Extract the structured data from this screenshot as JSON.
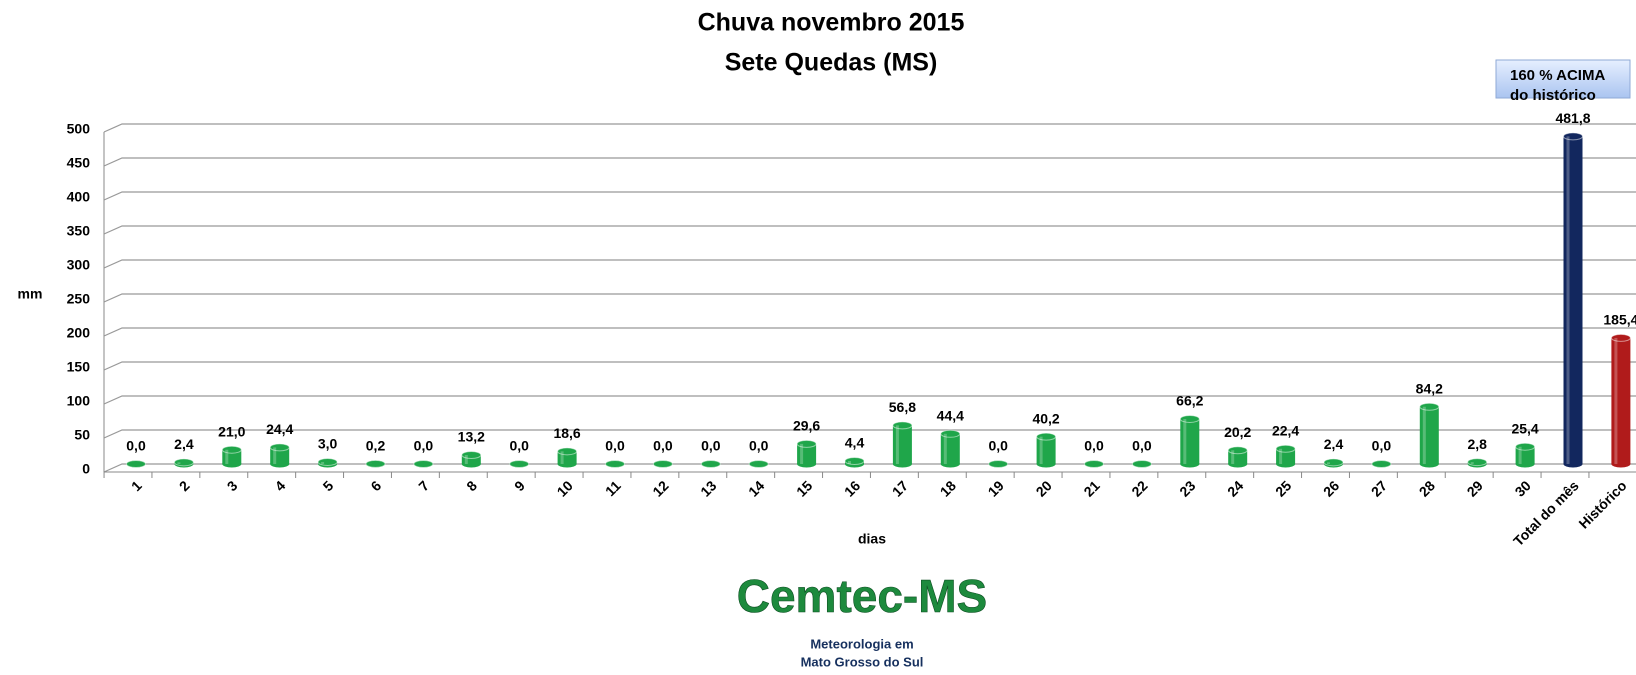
{
  "chart_data": {
    "type": "bar",
    "title": [
      "Chuva novembro 2015",
      "Sete Quedas (MS)"
    ],
    "y_label": "mm",
    "x_label": "dias",
    "annotation": [
      "160 % ACIMA",
      "do histórico"
    ],
    "categories": [
      "1",
      "2",
      "3",
      "4",
      "5",
      "6",
      "7",
      "8",
      "9",
      "10",
      "11",
      "12",
      "13",
      "14",
      "15",
      "16",
      "17",
      "18",
      "19",
      "20",
      "21",
      "22",
      "23",
      "24",
      "25",
      "26",
      "27",
      "28",
      "29",
      "30",
      "Total do mês",
      "Histórico"
    ],
    "values": [
      0,
      2.4,
      21,
      24.4,
      3,
      0.2,
      0,
      13.2,
      0,
      18.6,
      0,
      0,
      0,
      0,
      29.6,
      4.4,
      56.8,
      44.4,
      0,
      40.2,
      0,
      0,
      66.2,
      20.2,
      22.4,
      2.4,
      0,
      84.2,
      2.8,
      25.4,
      481.8,
      185.4
    ],
    "value_labels": [
      "0,0",
      "2,4",
      "21,0",
      "24,4",
      "3,0",
      "0,2",
      "0,0",
      "13,2",
      "0,0",
      "18,6",
      "0,0",
      "0,0",
      "0,0",
      "0,0",
      "29,6",
      "4,4",
      "56,8",
      "44,4",
      "0,0",
      "40,2",
      "0,0",
      "0,0",
      "66,2",
      "20,2",
      "22,4",
      "2,4",
      "0,0",
      "84,2",
      "2,8",
      "25,4",
      "481,8",
      "185,4"
    ],
    "colors": [
      "#1fa64a",
      "#1fa64a",
      "#1fa64a",
      "#1fa64a",
      "#1fa64a",
      "#1fa64a",
      "#1fa64a",
      "#1fa64a",
      "#1fa64a",
      "#1fa64a",
      "#1fa64a",
      "#1fa64a",
      "#1fa64a",
      "#1fa64a",
      "#1fa64a",
      "#1fa64a",
      "#1fa64a",
      "#1fa64a",
      "#1fa64a",
      "#1fa64a",
      "#1fa64a",
      "#1fa64a",
      "#1fa64a",
      "#1fa64a",
      "#1fa64a",
      "#1fa64a",
      "#1fa64a",
      "#1fa64a",
      "#1fa64a",
      "#1fa64a",
      "#12275e",
      "#b01b1b"
    ],
    "ylim": [
      0,
      500
    ],
    "yticks": [
      0,
      50,
      100,
      150,
      200,
      250,
      300,
      350,
      400,
      450,
      500
    ],
    "grid": true,
    "logo": {
      "name": "Cemtec-MS",
      "tagline": [
        "Meteorologia em",
        "Mato Grosso do Sul"
      ]
    }
  }
}
